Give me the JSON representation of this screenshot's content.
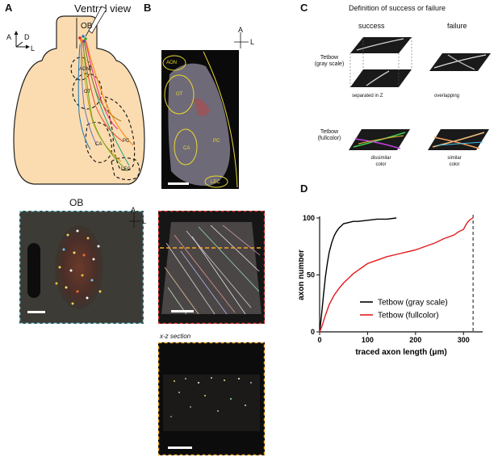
{
  "panels": {
    "A": {
      "letter": "A",
      "title": "Ventral view",
      "ob_label": "OB",
      "regions": [
        "AON",
        "OT",
        "CA",
        "PC",
        "LEC"
      ],
      "compass": {
        "a": "A",
        "d": "D",
        "l": "L"
      },
      "inset_title": "OB"
    },
    "B": {
      "letter": "B",
      "regions": [
        "AON",
        "OT",
        "CA",
        "PC",
        "LEC"
      ],
      "compass": {
        "a": "A",
        "l": "L"
      },
      "section_label": "x-z section"
    },
    "C": {
      "letter": "C",
      "title": "Definition of success or failure",
      "col_success": "success",
      "col_failure": "failure",
      "row1_label": [
        "Tetbow",
        "(gray scale)"
      ],
      "row2_label": [
        "Tetbow",
        "(fullcolor)"
      ],
      "caption_separated": "separated in Z",
      "caption_overlapping": "overlapping",
      "caption_dissimilar": [
        "dissimilar",
        "color"
      ],
      "caption_similar": [
        "similar",
        "color"
      ]
    },
    "D": {
      "letter": "D"
    }
  },
  "chart_data": {
    "type": "line",
    "xlabel": "traced axon length (μm)",
    "ylabel": "axon number",
    "xlim": [
      0,
      340
    ],
    "ylim": [
      0,
      100
    ],
    "xticks": [
      0,
      100,
      200,
      300
    ],
    "yticks": [
      0,
      50,
      100
    ],
    "vline_x": 320,
    "legend_position": "bottom-right",
    "series": [
      {
        "name": "Tetbow (gray scale)",
        "color": "#000000",
        "x": [
          0,
          4,
          8,
          12,
          16,
          20,
          25,
          30,
          35,
          40,
          45,
          50,
          60,
          70,
          80,
          100,
          120,
          140,
          160
        ],
        "y": [
          0,
          15,
          32,
          48,
          60,
          70,
          78,
          84,
          88,
          91,
          93,
          95,
          96,
          97,
          97,
          98,
          99,
          99,
          100
        ]
      },
      {
        "name": "Tetbow (fullcolor)",
        "color": "#e31a1c",
        "x": [
          0,
          5,
          10,
          15,
          20,
          30,
          40,
          50,
          60,
          70,
          80,
          90,
          100,
          120,
          140,
          160,
          180,
          200,
          220,
          240,
          260,
          280,
          290,
          300,
          305,
          310,
          315,
          320
        ],
        "y": [
          0,
          5,
          12,
          18,
          24,
          32,
          38,
          43,
          47,
          51,
          54,
          57,
          60,
          63,
          66,
          68,
          70,
          72,
          75,
          78,
          82,
          85,
          88,
          90,
          94,
          97,
          99,
          100
        ]
      }
    ]
  }
}
